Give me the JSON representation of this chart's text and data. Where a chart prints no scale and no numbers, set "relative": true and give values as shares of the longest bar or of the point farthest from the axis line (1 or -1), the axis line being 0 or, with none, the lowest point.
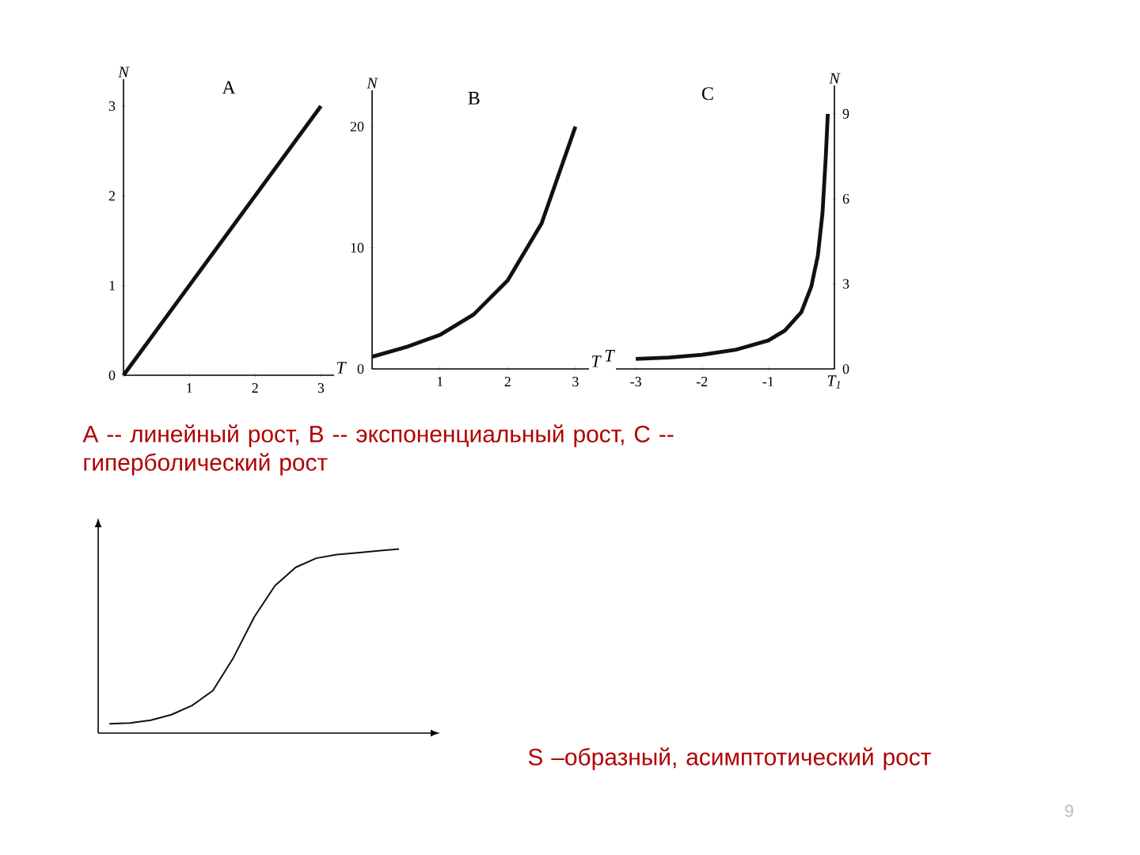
{
  "chart_data": [
    {
      "type": "line",
      "title": "A",
      "xlabel": "T",
      "ylabel": "N",
      "color": "#111111",
      "x": [
        0,
        1,
        2,
        3
      ],
      "values": [
        0,
        1,
        2,
        3
      ],
      "xlim": [
        0,
        3.2
      ],
      "ylim": [
        0,
        3.3
      ],
      "xticks": [
        {
          "value": 0,
          "label": null
        },
        1,
        2,
        3
      ],
      "yticks": [
        0,
        1,
        2,
        3
      ],
      "annotations": [
        "А -- линейный рост, В -- экспоненциальный рост, С -- гиперболический рост"
      ]
    },
    {
      "type": "line",
      "title": "B",
      "xlabel": "T",
      "ylabel": "N",
      "color": "#111111",
      "x": [
        0,
        0.5,
        1,
        1.5,
        2,
        2.5,
        3
      ],
      "values": [
        1.0,
        1.8,
        2.8,
        4.5,
        7.3,
        12,
        20
      ],
      "xlim": [
        0,
        3.2
      ],
      "ylim": [
        0,
        23
      ],
      "xticks": [
        1,
        2,
        3
      ],
      "yticks": [
        0,
        10,
        20
      ]
    },
    {
      "type": "line",
      "title": "C",
      "xlabel": "T",
      "ylabel": "N",
      "color": "#111111",
      "x": [
        -3,
        -2.5,
        -2,
        -1.5,
        -1,
        -0.75,
        -0.5,
        -0.35,
        -0.25,
        -0.18,
        -0.13,
        -0.1
      ],
      "values": [
        0.35,
        0.4,
        0.5,
        0.67,
        1.0,
        1.35,
        2.0,
        2.9,
        4.0,
        5.5,
        7.5,
        9.0
      ],
      "xlim": [
        -3.3,
        0
      ],
      "ylim": [
        0,
        10
      ],
      "xticks": [
        -3,
        -2,
        -1
      ],
      "yticks": [
        0,
        3,
        6,
        9
      ],
      "annotations": [
        "T$_{1}$"
      ]
    },
    {
      "type": "line",
      "relative": true,
      "color": "#111111",
      "categories": [
        null,
        null,
        null,
        null,
        null,
        null,
        null,
        null,
        null,
        null,
        null,
        null,
        null,
        null,
        null
      ],
      "values": [
        0.05,
        0.055,
        0.07,
        0.1,
        0.15,
        0.23,
        0.41,
        0.63,
        0.8,
        0.9,
        0.95,
        0.97,
        0.98,
        0.99,
        1.0
      ],
      "annotations": [
        "S –образный, асимптотический рост",
        "9"
      ]
    }
  ]
}
